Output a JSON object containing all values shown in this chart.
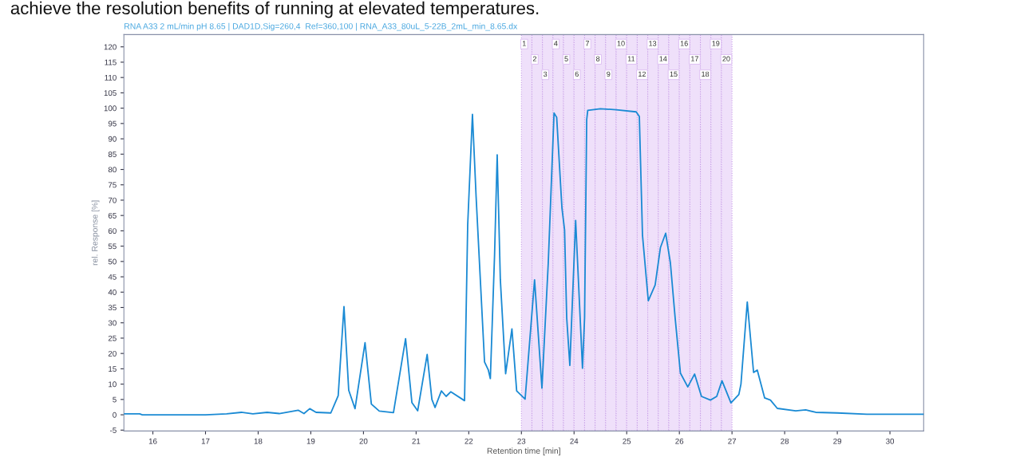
{
  "chart_data": {
    "type": "line",
    "title": "RNA A33 2 mL/min pH 8.65 | DAD1D,Sig=260,4  Ref=360,100 | RNA_A33_80uL_5-22B_2mL_min_8.65.dx",
    "xlabel": "Retention time [min]",
    "ylabel": "rel. Response [%]",
    "annotations": [
      "achieve the resolution benefits of running at elevated temperatures."
    ],
    "xlim": [
      15.45,
      30.64
    ],
    "ylim": [
      -5.3,
      124
    ],
    "xticks": [
      16,
      17,
      18,
      19,
      20,
      21,
      22,
      23,
      24,
      25,
      26,
      27,
      28,
      29,
      30
    ],
    "yticks": [
      -5,
      0,
      5,
      10,
      15,
      20,
      25,
      30,
      35,
      40,
      45,
      50,
      55,
      60,
      65,
      70,
      75,
      80,
      85,
      90,
      95,
      100,
      105,
      110,
      115,
      120
    ],
    "grid": false,
    "legend": false,
    "marker": "none",
    "line_style": "solid",
    "series": [
      {
        "color": "#1a8ad4",
        "x": [
          15.45,
          15.75,
          15.8,
          16.5,
          17.0,
          17.4,
          17.68,
          17.9,
          18.17,
          18.4,
          18.76,
          18.87,
          18.98,
          19.1,
          19.38,
          19.52,
          19.63,
          19.72,
          19.84,
          20.03,
          20.15,
          20.3,
          20.57,
          20.8,
          20.92,
          21.03,
          21.21,
          21.3,
          21.36,
          21.48,
          21.57,
          21.66,
          21.92,
          21.98,
          22.07,
          22.14,
          22.22,
          22.3,
          22.37,
          22.41,
          22.49,
          22.54,
          22.6,
          22.7,
          22.82,
          22.91,
          23.07,
          23.25,
          23.39,
          23.51,
          23.62,
          23.67,
          23.77,
          23.82,
          23.86,
          23.92,
          24.03,
          24.16,
          24.2,
          24.24,
          24.26,
          24.5,
          24.8,
          25.18,
          25.24,
          25.3,
          25.41,
          25.54,
          25.64,
          25.74,
          25.83,
          25.92,
          26.02,
          26.16,
          26.29,
          26.42,
          26.59,
          26.71,
          26.81,
          26.98,
          27.13,
          27.17,
          27.29,
          27.41,
          27.48,
          27.62,
          27.73,
          27.86,
          28.21,
          28.4,
          28.59,
          29.0,
          29.56,
          30.64
        ],
        "values": [
          0.3,
          0.3,
          0.0,
          0.0,
          0.0,
          0.3,
          0.8,
          0.3,
          0.8,
          0.4,
          1.5,
          0.4,
          2.0,
          0.8,
          0.6,
          6.2,
          35.3,
          8.0,
          2.0,
          23.5,
          3.5,
          1.2,
          0.7,
          24.8,
          4.0,
          1.3,
          19.7,
          5.0,
          2.4,
          7.8,
          6.0,
          7.5,
          4.6,
          62,
          98.0,
          71,
          44,
          17.2,
          14.7,
          11.8,
          52,
          84.8,
          44,
          13.4,
          28.0,
          7.8,
          5.1,
          44.0,
          8.7,
          49.5,
          98.4,
          97,
          67.4,
          60.3,
          31.7,
          16.1,
          63.4,
          15.2,
          31.7,
          96.2,
          99.3,
          99.8,
          99.5,
          98.8,
          97.3,
          58.5,
          37.2,
          42.3,
          54.5,
          59.2,
          49.5,
          31.6,
          13.6,
          9.1,
          13.3,
          6.0,
          4.8,
          6.0,
          11.1,
          3.9,
          6.6,
          10,
          36.8,
          13.8,
          14.6,
          5.5,
          4.8,
          2.1,
          1.3,
          1.6,
          0.8,
          0.6,
          0.2,
          0.2
        ]
      }
    ],
    "bands": [
      {
        "axis": "x",
        "from": 23.0,
        "to": 23.2,
        "label": "1",
        "color": "#efe0fa"
      },
      {
        "axis": "x",
        "from": 23.2,
        "to": 23.4,
        "label": "2",
        "color": "#efe0fa"
      },
      {
        "axis": "x",
        "from": 23.4,
        "to": 23.6,
        "label": "3",
        "color": "#efe0fa"
      },
      {
        "axis": "x",
        "from": 23.6,
        "to": 23.8,
        "label": "4",
        "color": "#efe0fa"
      },
      {
        "axis": "x",
        "from": 23.8,
        "to": 24.0,
        "label": "5",
        "color": "#efe0fa"
      },
      {
        "axis": "x",
        "from": 24.0,
        "to": 24.2,
        "label": "6",
        "color": "#efe0fa"
      },
      {
        "axis": "x",
        "from": 24.2,
        "to": 24.4,
        "label": "7",
        "color": "#efe0fa"
      },
      {
        "axis": "x",
        "from": 24.4,
        "to": 24.6,
        "label": "8",
        "color": "#efe0fa"
      },
      {
        "axis": "x",
        "from": 24.6,
        "to": 24.8,
        "label": "9",
        "color": "#efe0fa"
      },
      {
        "axis": "x",
        "from": 24.8,
        "to": 25.0,
        "label": "10",
        "color": "#efe0fa"
      },
      {
        "axis": "x",
        "from": 25.0,
        "to": 25.2,
        "label": "11",
        "color": "#efe0fa"
      },
      {
        "axis": "x",
        "from": 25.2,
        "to": 25.4,
        "label": "12",
        "color": "#efe0fa"
      },
      {
        "axis": "x",
        "from": 25.4,
        "to": 25.6,
        "label": "13",
        "color": "#efe0fa"
      },
      {
        "axis": "x",
        "from": 25.6,
        "to": 25.8,
        "label": "14",
        "color": "#efe0fa"
      },
      {
        "axis": "x",
        "from": 25.8,
        "to": 26.0,
        "label": "15",
        "color": "#efe0fa"
      },
      {
        "axis": "x",
        "from": 26.0,
        "to": 26.2,
        "label": "16",
        "color": "#efe0fa"
      },
      {
        "axis": "x",
        "from": 26.2,
        "to": 26.4,
        "label": "17",
        "color": "#efe0fa"
      },
      {
        "axis": "x",
        "from": 26.4,
        "to": 26.6,
        "label": "18",
        "color": "#efe0fa"
      },
      {
        "axis": "x",
        "from": 26.6,
        "to": 26.8,
        "label": "19",
        "color": "#efe0fa"
      },
      {
        "axis": "x",
        "from": 26.8,
        "to": 27.0,
        "label": "20",
        "color": "#efe0fa"
      }
    ]
  }
}
